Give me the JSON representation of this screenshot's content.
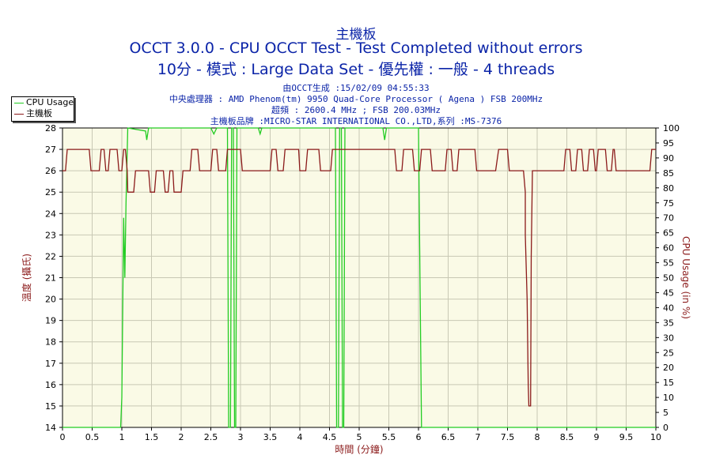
{
  "titles": {
    "line1": "主機板",
    "line2": "OCCT 3.0.0 - CPU OCCT Test - Test Completed without errors",
    "line3": "10分 - 模式 : Large Data Set - 優先權 : 一般 - 4 threads"
  },
  "subtitles": {
    "generated": "由OCCT生成 :15/02/09 04:55:33",
    "cpu": "中央處理器 : AMD Phenom(tm) 9950 Quad-Core Processor ( Agena ) FSB 200MHz",
    "clock": "超頻 : 2600.4 MHz ; FSB 200.03MHz",
    "board": "主機板品牌 :MICRO-STAR INTERNATIONAL CO.,LTD,系列 :MS-7376"
  },
  "colors": {
    "cpu_series": "#22cc22",
    "temp_series": "#8b1a1a",
    "plot_bg": "#fafae6",
    "grid": "#c8c8b4",
    "title": "#0b24a8",
    "axis_label": "#8b1a1a"
  },
  "chart_data": {
    "type": "line",
    "xlabel": "時間 (分鐘)",
    "ylabel_left": "溫度 (攝氏)",
    "ylabel_right": "CPU Usage (in %)",
    "xlim": [
      0,
      10
    ],
    "ylim_left": [
      14,
      28
    ],
    "ylim_right": [
      0,
      100
    ],
    "grid": true,
    "legend_position": "top-left",
    "x_ticks": [
      "0",
      "0.5",
      "1",
      "1.5",
      "2",
      "2.5",
      "3",
      "3.5",
      "4",
      "4.5",
      "5",
      "5.5",
      "6",
      "6.5",
      "7",
      "7.5",
      "8",
      "8.5",
      "9",
      "9.5",
      "10"
    ],
    "y_left_ticks": [
      "14",
      "15",
      "16",
      "17",
      "18",
      "19",
      "20",
      "21",
      "22",
      "23",
      "24",
      "25",
      "26",
      "27",
      "28"
    ],
    "y_right_ticks": [
      "0",
      "5",
      "10",
      "15",
      "20",
      "25",
      "30",
      "35",
      "40",
      "45",
      "50",
      "55",
      "60",
      "65",
      "70",
      "75",
      "80",
      "85",
      "90",
      "95",
      "100"
    ],
    "series": [
      {
        "name": "CPU Usage",
        "axis": "right",
        "points": [
          [
            0,
            0
          ],
          [
            0.98,
            0
          ],
          [
            1.0,
            10
          ],
          [
            1.03,
            70
          ],
          [
            1.05,
            50
          ],
          [
            1.07,
            75
          ],
          [
            1.1,
            100
          ],
          [
            1.4,
            99
          ],
          [
            1.42,
            96
          ],
          [
            1.45,
            100
          ],
          [
            2.5,
            100
          ],
          [
            2.55,
            98
          ],
          [
            2.6,
            100
          ],
          [
            2.78,
            100
          ],
          [
            2.8,
            0
          ],
          [
            2.83,
            0
          ],
          [
            2.85,
            100
          ],
          [
            2.88,
            100
          ],
          [
            2.9,
            0
          ],
          [
            2.92,
            0
          ],
          [
            2.94,
            100
          ],
          [
            3.3,
            100
          ],
          [
            3.33,
            98
          ],
          [
            3.36,
            100
          ],
          [
            4.6,
            100
          ],
          [
            4.62,
            0
          ],
          [
            4.65,
            0
          ],
          [
            4.67,
            100
          ],
          [
            4.7,
            100
          ],
          [
            4.72,
            0
          ],
          [
            4.74,
            0
          ],
          [
            4.76,
            100
          ],
          [
            5.4,
            100
          ],
          [
            5.43,
            96
          ],
          [
            5.46,
            100
          ],
          [
            6.0,
            100
          ],
          [
            6.02,
            60
          ],
          [
            6.05,
            0
          ],
          [
            10,
            0
          ]
        ]
      },
      {
        "name": "主機板",
        "axis": "left",
        "points": [
          [
            0,
            26
          ],
          [
            0.05,
            26
          ],
          [
            0.08,
            27
          ],
          [
            0.45,
            27
          ],
          [
            0.48,
            26
          ],
          [
            0.62,
            26
          ],
          [
            0.65,
            27
          ],
          [
            0.7,
            27
          ],
          [
            0.73,
            26
          ],
          [
            0.77,
            26
          ],
          [
            0.8,
            27
          ],
          [
            0.92,
            27
          ],
          [
            0.95,
            26
          ],
          [
            1.0,
            26
          ],
          [
            1.03,
            27
          ],
          [
            1.06,
            27
          ],
          [
            1.09,
            26
          ],
          [
            1.1,
            25
          ],
          [
            1.2,
            25
          ],
          [
            1.23,
            26
          ],
          [
            1.45,
            26
          ],
          [
            1.48,
            25
          ],
          [
            1.55,
            25
          ],
          [
            1.58,
            26
          ],
          [
            1.7,
            26
          ],
          [
            1.73,
            25
          ],
          [
            1.78,
            25
          ],
          [
            1.81,
            26
          ],
          [
            1.86,
            26
          ],
          [
            1.88,
            25
          ],
          [
            2.0,
            25
          ],
          [
            2.03,
            26
          ],
          [
            2.15,
            26
          ],
          [
            2.18,
            27
          ],
          [
            2.28,
            27
          ],
          [
            2.31,
            26
          ],
          [
            2.5,
            26
          ],
          [
            2.53,
            27
          ],
          [
            2.6,
            27
          ],
          [
            2.63,
            26
          ],
          [
            2.75,
            26
          ],
          [
            2.78,
            27
          ],
          [
            3.0,
            27
          ],
          [
            3.03,
            26
          ],
          [
            3.5,
            26
          ],
          [
            3.53,
            27
          ],
          [
            3.6,
            27
          ],
          [
            3.63,
            26
          ],
          [
            3.72,
            26
          ],
          [
            3.75,
            27
          ],
          [
            3.98,
            27
          ],
          [
            4.0,
            26
          ],
          [
            4.1,
            26
          ],
          [
            4.13,
            27
          ],
          [
            4.32,
            27
          ],
          [
            4.35,
            26
          ],
          [
            4.52,
            26
          ],
          [
            4.55,
            27
          ],
          [
            5.6,
            27
          ],
          [
            5.63,
            26
          ],
          [
            5.72,
            26
          ],
          [
            5.75,
            27
          ],
          [
            5.9,
            27
          ],
          [
            5.93,
            26
          ],
          [
            6.02,
            26
          ],
          [
            6.05,
            27
          ],
          [
            6.2,
            27
          ],
          [
            6.23,
            26
          ],
          [
            6.45,
            26
          ],
          [
            6.48,
            27
          ],
          [
            6.55,
            27
          ],
          [
            6.58,
            26
          ],
          [
            6.65,
            26
          ],
          [
            6.68,
            27
          ],
          [
            6.95,
            27
          ],
          [
            6.98,
            26
          ],
          [
            7.3,
            26
          ],
          [
            7.35,
            27
          ],
          [
            7.5,
            27
          ],
          [
            7.53,
            26
          ],
          [
            7.77,
            26
          ],
          [
            7.8,
            25
          ],
          [
            7.8,
            23
          ],
          [
            7.83,
            20
          ],
          [
            7.85,
            16
          ],
          [
            7.86,
            15
          ],
          [
            7.89,
            15
          ],
          [
            7.9,
            22
          ],
          [
            7.92,
            26
          ],
          [
            8.45,
            26
          ],
          [
            8.48,
            27
          ],
          [
            8.55,
            27
          ],
          [
            8.58,
            26
          ],
          [
            8.65,
            26
          ],
          [
            8.68,
            27
          ],
          [
            8.75,
            27
          ],
          [
            8.78,
            26
          ],
          [
            8.85,
            26
          ],
          [
            8.88,
            27
          ],
          [
            8.95,
            27
          ],
          [
            8.98,
            26
          ],
          [
            9.0,
            26
          ],
          [
            9.03,
            27
          ],
          [
            9.15,
            27
          ],
          [
            9.18,
            26
          ],
          [
            9.25,
            26
          ],
          [
            9.28,
            27
          ],
          [
            9.3,
            27
          ],
          [
            9.33,
            26
          ],
          [
            9.9,
            26
          ],
          [
            9.93,
            27
          ],
          [
            10,
            27
          ]
        ]
      }
    ]
  }
}
